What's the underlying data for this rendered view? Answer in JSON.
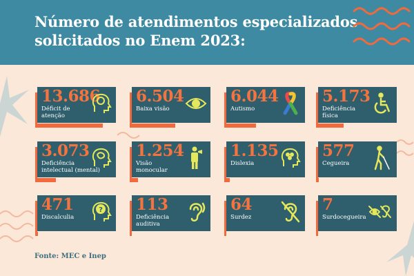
{
  "header": {
    "title_line1": "Número de atendimentos especializados",
    "title_line2": "solicitados no Enem 2023:"
  },
  "colors": {
    "header_bg": "#3e8aa2",
    "card_bg": "#2f5f6d",
    "accent": "#f06a3e",
    "icon": "#e5e85a",
    "page_bg": "#fbe8d8"
  },
  "cards": [
    {
      "value": "13.686",
      "label_1": "Déficit de",
      "label_2": "atenção",
      "icon": "brain-head-icon",
      "bar": 0.82
    },
    {
      "value": "6.504",
      "label_1": "Baixa visão",
      "label_2": "",
      "icon": "eye-icon",
      "bar": 0.55
    },
    {
      "value": "6.044",
      "label_1": "Autismo",
      "label_2": "",
      "icon": "puzzle-ribbon-icon",
      "bar": 0.38
    },
    {
      "value": "5.173",
      "label_1": "Deficiência",
      "label_2": "física",
      "icon": "wheelchair-icon",
      "bar": 0.3
    },
    {
      "value": "3.073",
      "label_1": "Deficiência",
      "label_2": "intelectual (mental)",
      "icon": "brain-head-icon",
      "bar": 0.2
    },
    {
      "value": "1.254",
      "label_1": "Visão",
      "label_2": "monocular",
      "icon": "person-eye-icon",
      "bar": 0.1
    },
    {
      "value": "1.135",
      "label_1": "Dislexia",
      "label_2": "",
      "icon": "brain-head-icon",
      "bar": 0.08
    },
    {
      "value": "577",
      "label_1": "Cegueira",
      "label_2": "",
      "icon": "blind-person-icon",
      "bar": 0.03
    },
    {
      "value": "471",
      "label_1": "Discalculia",
      "label_2": "",
      "icon": "question-head-icon",
      "bar": 0.03
    },
    {
      "value": "113",
      "label_1": "Deficiência",
      "label_2": "auditiva",
      "icon": "ear-icon",
      "bar": 0.01
    },
    {
      "value": "64",
      "label_1": "Surdez",
      "label_2": "",
      "icon": "deaf-ear-icon",
      "bar": 0.005
    },
    {
      "value": "7",
      "label_1": "Surdocegueira",
      "label_2": "",
      "icon": "deafblind-icon",
      "bar": 0.002
    }
  ],
  "footer": {
    "source": "Fonte: MEC e Inep"
  }
}
